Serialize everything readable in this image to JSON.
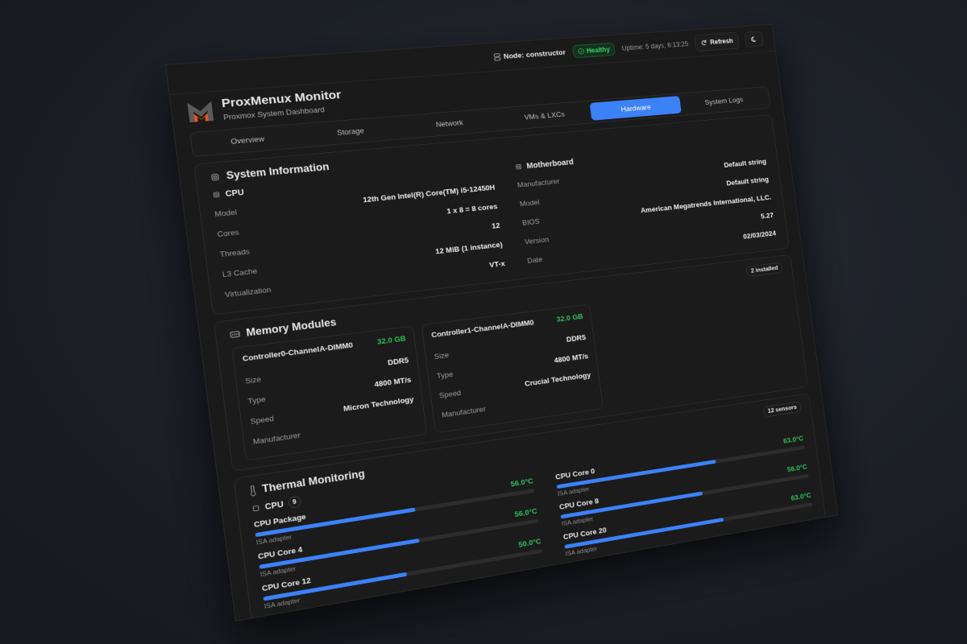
{
  "header": {
    "node_label": "Node: constructor",
    "status": "Healthy",
    "uptime": "Uptime: 5 days, 6:13:25",
    "refresh_label": "Refresh",
    "app_title": "ProxMenux Monitor",
    "app_subtitle": "Proxmox System Dashboard"
  },
  "tabs": [
    {
      "label": "Overview"
    },
    {
      "label": "Storage"
    },
    {
      "label": "Network"
    },
    {
      "label": "VMs & LXCs"
    },
    {
      "label": "Hardware",
      "active": true
    },
    {
      "label": "System Logs"
    }
  ],
  "system_info": {
    "title": "System Information",
    "cpu": {
      "title": "CPU",
      "rows": [
        {
          "k": "Model",
          "v": "12th Gen Intel(R) Core(TM) i5-12450H"
        },
        {
          "k": "Cores",
          "v": "1 x 8 = 8 cores"
        },
        {
          "k": "Threads",
          "v": "12"
        },
        {
          "k": "L3 Cache",
          "v": "12 MiB (1 instance)"
        },
        {
          "k": "Virtualization",
          "v": "VT-x"
        }
      ]
    },
    "motherboard": {
      "title": "Motherboard",
      "rows": [
        {
          "k": "Manufacturer",
          "v": "Default string"
        },
        {
          "k": "Model",
          "v": "Default string"
        },
        {
          "k": "BIOS",
          "v": "American Megatrends International, LLC."
        },
        {
          "k": "Version",
          "v": "5.27"
        },
        {
          "k": "Date",
          "v": "02/03/2024"
        }
      ]
    }
  },
  "memory": {
    "title": "Memory Modules",
    "badge": "2 installed",
    "modules": [
      {
        "name": "Controller0-ChannelA-DIMM0",
        "size_value": "32.0 GB",
        "rows": [
          {
            "k": "Size",
            "v": "DDR5"
          },
          {
            "k": "Type",
            "v": "4800 MT/s"
          },
          {
            "k": "Speed",
            "v": "Micron Technology"
          },
          {
            "k": "Manufacturer",
            "v": ""
          }
        ]
      },
      {
        "name": "Controller1-ChannelA-DIMM0",
        "size_value": "32.0 GB",
        "rows": [
          {
            "k": "Size",
            "v": "DDR5"
          },
          {
            "k": "Type",
            "v": "4800 MT/s"
          },
          {
            "k": "Speed",
            "v": "Crucial Technology"
          },
          {
            "k": "Manufacturer",
            "v": ""
          }
        ]
      }
    ]
  },
  "thermal": {
    "title": "Thermal Monitoring",
    "badge": "12 sensors",
    "group": "CPU",
    "group_count": "9",
    "sensors": [
      {
        "name": "CPU Package",
        "temp": "56.0°C",
        "level": 0.56,
        "adapter": "ISA adapter"
      },
      {
        "name": "CPU Core 0",
        "temp": "63.0°C",
        "level": 0.63,
        "adapter": "ISA adapter"
      },
      {
        "name": "CPU Core 4",
        "temp": "56.0°C",
        "level": 0.56,
        "adapter": "ISA adapter"
      },
      {
        "name": "CPU Core 8",
        "temp": "56.0°C",
        "level": 0.56,
        "adapter": "ISA adapter"
      },
      {
        "name": "CPU Core 12",
        "temp": "50.0°C",
        "level": 0.5,
        "adapter": "ISA adapter"
      },
      {
        "name": "CPU Core 20",
        "temp": "63.0°C",
        "level": 0.63,
        "adapter": "ISA adapter"
      }
    ]
  },
  "colors": {
    "accent": "#3b82f6",
    "ok": "#2fbf5c",
    "logo_orange": "#e8531c"
  }
}
